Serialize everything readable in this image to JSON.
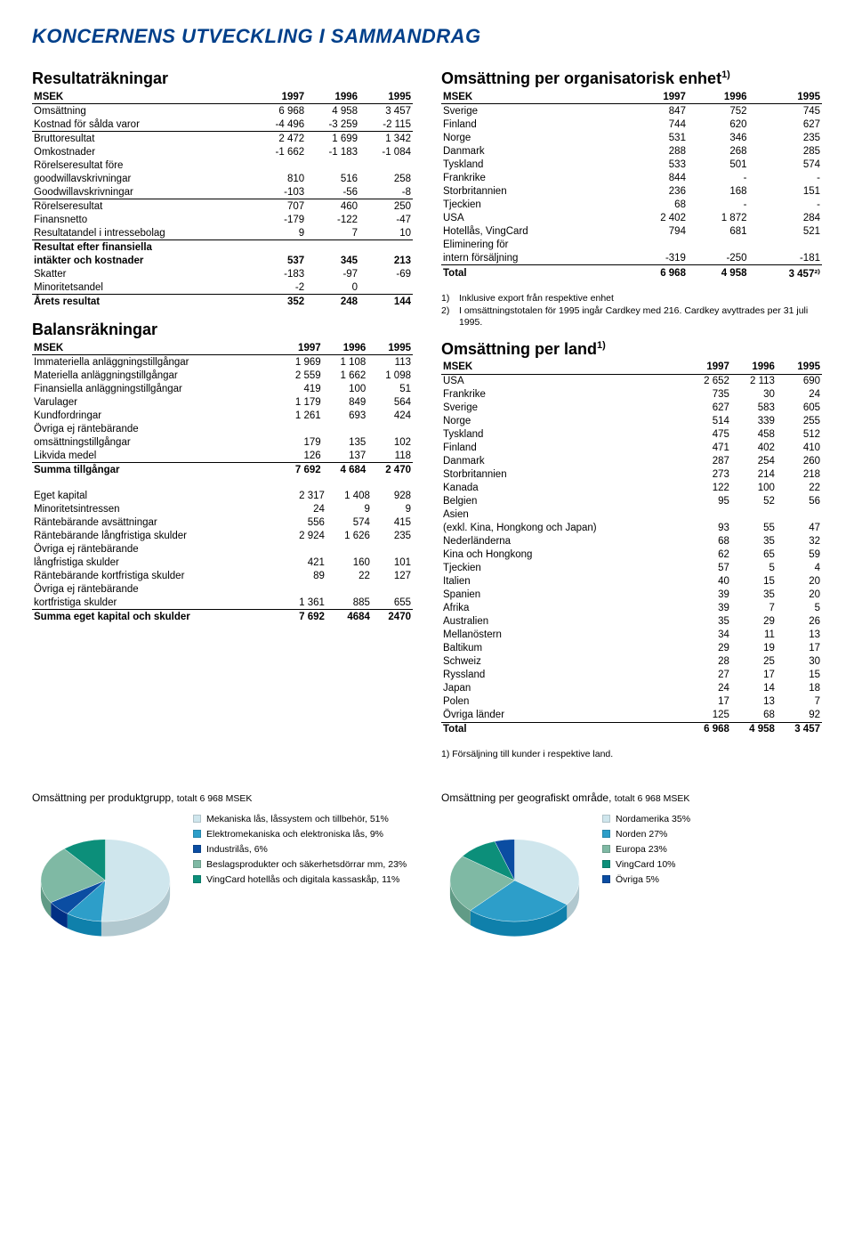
{
  "page_title": "KONCERNENS UTVECKLING I SAMMANDRAG",
  "colors": {
    "heading": "#003f8a"
  },
  "resultat": {
    "title": "Resultaträkningar",
    "header": [
      "MSEK",
      "1997",
      "1996",
      "1995"
    ],
    "rows": [
      {
        "l": "Omsättning",
        "v": [
          "6 968",
          "4 958",
          "3 457"
        ]
      },
      {
        "l": "Kostnad för sålda varor",
        "v": [
          "-4 496",
          "-3 259",
          "-2 115"
        ],
        "ul": true
      },
      {
        "l": "Bruttoresultat",
        "v": [
          "2 472",
          "1 699",
          "1 342"
        ]
      },
      {
        "l": "Omkostnader",
        "v": [
          "-1 662",
          "-1 183",
          "-1 084"
        ]
      },
      {
        "l": "Rörelseresultat före",
        "v": [
          "",
          "",
          ""
        ]
      },
      {
        "l": "goodwillavskrivningar",
        "v": [
          "810",
          "516",
          "258"
        ]
      },
      {
        "l": "Goodwillavskrivningar",
        "v": [
          "-103",
          "-56",
          "-8"
        ],
        "ul": true
      },
      {
        "l": "Rörelseresultat",
        "v": [
          "707",
          "460",
          "250"
        ]
      },
      {
        "l": "Finansnetto",
        "v": [
          "-179",
          "-122",
          "-47"
        ]
      },
      {
        "l": "Resultatandel i intressebolag",
        "v": [
          "9",
          "7",
          "10"
        ],
        "ul": true
      },
      {
        "l": "Resultat efter finansiella",
        "v": [
          "",
          "",
          ""
        ],
        "b": true
      },
      {
        "l": "intäkter och kostnader",
        "v": [
          "537",
          "345",
          "213"
        ],
        "b": true
      },
      {
        "l": "Skatter",
        "v": [
          "-183",
          "-97",
          "-69"
        ]
      },
      {
        "l": "Minoritetsandel",
        "v": [
          "-2",
          "0",
          ""
        ],
        "ul": true
      },
      {
        "l": "Årets resultat",
        "v": [
          "352",
          "248",
          "144"
        ],
        "b": true
      }
    ]
  },
  "balans": {
    "title": "Balansräkningar",
    "header": [
      "MSEK",
      "1997",
      "1996",
      "1995"
    ],
    "rows1": [
      {
        "l": "Immateriella anläggningstillgångar",
        "v": [
          "1 969",
          "1 108",
          "113"
        ]
      },
      {
        "l": "Materiella anläggningstillgångar",
        "v": [
          "2 559",
          "1 662",
          "1 098"
        ]
      },
      {
        "l": "Finansiella anläggningstillgångar",
        "v": [
          "419",
          "100",
          "51"
        ]
      },
      {
        "l": "Varulager",
        "v": [
          "1 179",
          "849",
          "564"
        ]
      },
      {
        "l": "Kundfordringar",
        "v": [
          "1 261",
          "693",
          "424"
        ]
      },
      {
        "l": "Övriga ej räntebärande",
        "v": [
          "",
          "",
          ""
        ]
      },
      {
        "l": "omsättningstillgångar",
        "v": [
          "179",
          "135",
          "102"
        ]
      },
      {
        "l": "Likvida medel",
        "v": [
          "126",
          "137",
          "118"
        ],
        "ul": true
      },
      {
        "l": "Summa tillgångar",
        "v": [
          "7 692",
          "4 684",
          "2 470"
        ],
        "b": true
      }
    ],
    "rows2": [
      {
        "l": "Eget kapital",
        "v": [
          "2 317",
          "1 408",
          "928"
        ]
      },
      {
        "l": "Minoritetsintressen",
        "v": [
          "24",
          "9",
          "9"
        ]
      },
      {
        "l": "Räntebärande avsättningar",
        "v": [
          "556",
          "574",
          "415"
        ]
      },
      {
        "l": "Räntebärande långfristiga skulder",
        "v": [
          "2 924",
          "1 626",
          "235"
        ]
      },
      {
        "l": "Övriga ej räntebärande",
        "v": [
          "",
          "",
          ""
        ]
      },
      {
        "l": "långfristiga skulder",
        "v": [
          "421",
          "160",
          "101"
        ]
      },
      {
        "l": "Räntebärande kortfristiga skulder",
        "v": [
          "89",
          "22",
          "127"
        ]
      },
      {
        "l": "Övriga ej räntebärande",
        "v": [
          "",
          "",
          ""
        ]
      },
      {
        "l": "kortfristiga skulder",
        "v": [
          "1 361",
          "885",
          "655"
        ],
        "ul": true
      },
      {
        "l": "Summa eget kapital och skulder",
        "v": [
          "7 692",
          "4684",
          "2470"
        ],
        "b": true
      }
    ]
  },
  "org": {
    "title": "Omsättning per organisatorisk enhet",
    "sup": "1)",
    "header": [
      "MSEK",
      "1997",
      "1996",
      "1995"
    ],
    "rows": [
      {
        "l": "Sverige",
        "v": [
          "847",
          "752",
          "745"
        ]
      },
      {
        "l": "Finland",
        "v": [
          "744",
          "620",
          "627"
        ]
      },
      {
        "l": "Norge",
        "v": [
          "531",
          "346",
          "235"
        ]
      },
      {
        "l": "Danmark",
        "v": [
          "288",
          "268",
          "285"
        ]
      },
      {
        "l": "Tyskland",
        "v": [
          "533",
          "501",
          "574"
        ]
      },
      {
        "l": "Frankrike",
        "v": [
          "844",
          "-",
          "-"
        ]
      },
      {
        "l": "Storbritannien",
        "v": [
          "236",
          "168",
          "151"
        ]
      },
      {
        "l": "Tjeckien",
        "v": [
          "68",
          "-",
          "-"
        ]
      },
      {
        "l": "USA",
        "v": [
          "2 402",
          "1 872",
          "284"
        ]
      },
      {
        "l": "Hotellås, VingCard",
        "v": [
          "794",
          "681",
          "521"
        ]
      },
      {
        "l": "Eliminering för",
        "v": [
          "",
          "",
          ""
        ]
      },
      {
        "l": "intern försäljning",
        "v": [
          "-319",
          "-250",
          "-181"
        ],
        "ul": true
      },
      {
        "l": "Total",
        "v": [
          "6 968",
          "4 958",
          "3 457²⁾"
        ],
        "b": true
      }
    ],
    "footnotes": [
      {
        "n": "1)",
        "txt": "Inklusive export från respektive enhet"
      },
      {
        "n": "2)",
        "txt": "I omsättningstotalen för 1995 ingår Cardkey med 216. Cardkey avyttrades per 31 juli 1995."
      }
    ]
  },
  "land": {
    "title": "Omsättning per land",
    "sup": "1)",
    "header": [
      "MSEK",
      "1997",
      "1996",
      "1995"
    ],
    "rows": [
      {
        "l": "USA",
        "v": [
          "2 652",
          "2 113",
          "690"
        ]
      },
      {
        "l": "Frankrike",
        "v": [
          "735",
          "30",
          "24"
        ]
      },
      {
        "l": "Sverige",
        "v": [
          "627",
          "583",
          "605"
        ]
      },
      {
        "l": "Norge",
        "v": [
          "514",
          "339",
          "255"
        ]
      },
      {
        "l": "Tyskland",
        "v": [
          "475",
          "458",
          "512"
        ]
      },
      {
        "l": "Finland",
        "v": [
          "471",
          "402",
          "410"
        ]
      },
      {
        "l": "Danmark",
        "v": [
          "287",
          "254",
          "260"
        ]
      },
      {
        "l": "Storbritannien",
        "v": [
          "273",
          "214",
          "218"
        ]
      },
      {
        "l": "Kanada",
        "v": [
          "122",
          "100",
          "22"
        ]
      },
      {
        "l": "Belgien",
        "v": [
          "95",
          "52",
          "56"
        ]
      },
      {
        "l": "Asien",
        "v": [
          "",
          "",
          ""
        ]
      },
      {
        "l": "(exkl. Kina, Hongkong och Japan)",
        "v": [
          "93",
          "55",
          "47"
        ]
      },
      {
        "l": "Nederländerna",
        "v": [
          "68",
          "35",
          "32"
        ]
      },
      {
        "l": "Kina och Hongkong",
        "v": [
          "62",
          "65",
          "59"
        ]
      },
      {
        "l": "Tjeckien",
        "v": [
          "57",
          "5",
          "4"
        ]
      },
      {
        "l": "Italien",
        "v": [
          "40",
          "15",
          "20"
        ]
      },
      {
        "l": "Spanien",
        "v": [
          "39",
          "35",
          "20"
        ]
      },
      {
        "l": "Afrika",
        "v": [
          "39",
          "7",
          "5"
        ]
      },
      {
        "l": "Australien",
        "v": [
          "35",
          "29",
          "26"
        ]
      },
      {
        "l": "Mellanöstern",
        "v": [
          "34",
          "11",
          "13"
        ]
      },
      {
        "l": "Baltikum",
        "v": [
          "29",
          "19",
          "17"
        ]
      },
      {
        "l": "Schweiz",
        "v": [
          "28",
          "25",
          "30"
        ]
      },
      {
        "l": "Ryssland",
        "v": [
          "27",
          "17",
          "15"
        ]
      },
      {
        "l": "Japan",
        "v": [
          "24",
          "14",
          "18"
        ]
      },
      {
        "l": "Polen",
        "v": [
          "17",
          "13",
          "7"
        ]
      },
      {
        "l": "Övriga länder",
        "v": [
          "125",
          "68",
          "92"
        ],
        "ul": true
      },
      {
        "l": "Total",
        "v": [
          "6 968",
          "4 958",
          "3 457"
        ],
        "b": true
      }
    ],
    "footnote": "1) Försäljning till kunder i respektive land."
  },
  "pie1": {
    "title": "Omsättning per produktgrupp,",
    "sub": "totalt 6 968 MSEK",
    "slices": [
      {
        "label": "Mekaniska lås, låssystem och tillbehör, 51%",
        "value": 51,
        "color": "#cfe6ed"
      },
      {
        "label": "Elektromekaniska och elektroniska lås, 9%",
        "value": 9,
        "color": "#2d9ec9"
      },
      {
        "label": "Industrilås, 6%",
        "value": 6,
        "color": "#0b4da2"
      },
      {
        "label": "Beslagsprodukter och säkerhetsdörrar mm, 23%",
        "value": 23,
        "color": "#7fb9a4"
      },
      {
        "label": "VingCard hotellås och digitala kassaskåp, 11%",
        "value": 11,
        "color": "#0c8f7a"
      }
    ]
  },
  "pie2": {
    "title": "Omsättning per geografiskt område,",
    "sub": "totalt 6 968 MSEK",
    "slices": [
      {
        "label": "Nordamerika 35%",
        "value": 35,
        "color": "#cfe6ed"
      },
      {
        "label": "Norden 27%",
        "value": 27,
        "color": "#2d9ec9"
      },
      {
        "label": "Europa 23%",
        "value": 23,
        "color": "#7fb9a4"
      },
      {
        "label": "VingCard 10%",
        "value": 10,
        "color": "#0c8f7a"
      },
      {
        "label": "Övriga 5%",
        "value": 5,
        "color": "#0b4da2"
      }
    ]
  }
}
